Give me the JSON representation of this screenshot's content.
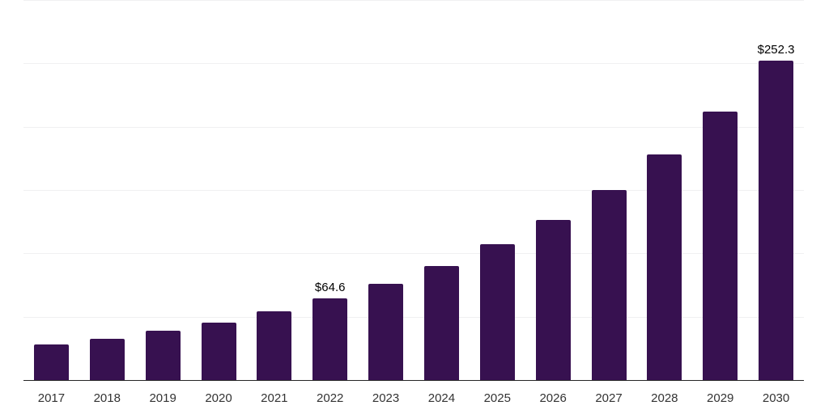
{
  "chart_data": {
    "type": "bar",
    "title": "",
    "xlabel": "",
    "ylabel": "",
    "categories": [
      "2017",
      "2018",
      "2019",
      "2020",
      "2021",
      "2022",
      "2023",
      "2024",
      "2025",
      "2026",
      "2027",
      "2028",
      "2029",
      "2030"
    ],
    "values": [
      27.8,
      32.7,
      38.7,
      45.6,
      54.5,
      64.6,
      76.0,
      89.8,
      107.2,
      126.6,
      150.0,
      178.1,
      211.8,
      252.3
    ],
    "data_labels": {
      "2022": "$64.6",
      "2030": "$252.3"
    },
    "ylim": [
      0,
      300
    ],
    "gridline_step": 50,
    "grid": "horizontal",
    "legend": "none",
    "y_tick_labels_visible": false
  },
  "colors": {
    "bar": "#371150",
    "gridline": "#f0f0f1",
    "axis_line": "#262626",
    "tick_label": "#333333",
    "value_label": "#000000",
    "background": "#ffffff"
  }
}
